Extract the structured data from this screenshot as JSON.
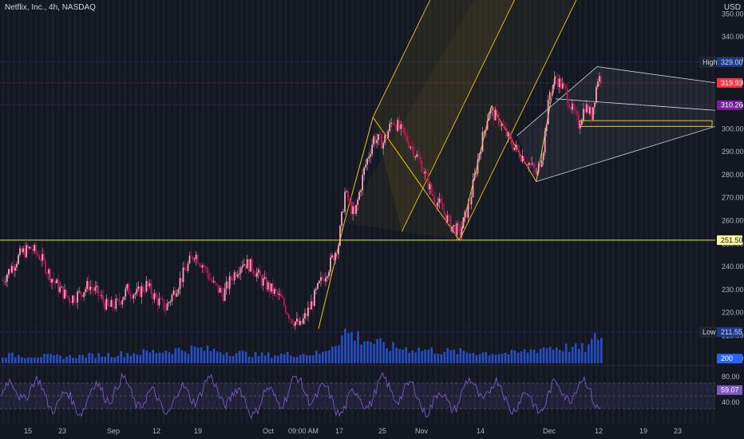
{
  "header": {
    "symbol_line": "Netflix, Inc., 4h, NASDAQ",
    "currency": "USD"
  },
  "chart_data": {
    "type": "candlestick",
    "price_axis": {
      "ticks": [
        350,
        340,
        330,
        320,
        310,
        300,
        290,
        280,
        270,
        260,
        250,
        240,
        230,
        220,
        210,
        200
      ],
      "range": [
        198,
        356
      ]
    },
    "time_axis": {
      "labels": [
        "15",
        "23",
        "Sep",
        "12",
        "19",
        "Oct",
        "09:00 AM",
        "17",
        "25",
        "Nov",
        "14",
        "Dec",
        "12",
        "19",
        "23"
      ]
    },
    "price_tags": {
      "high": {
        "label": "High",
        "value": "329.00"
      },
      "last": {
        "value": "319.93"
      },
      "mid": {
        "value": "310.26"
      },
      "level": {
        "value": "251.50"
      },
      "low": {
        "label": "Low",
        "value": "211.55"
      },
      "vol": {
        "value": "200"
      }
    },
    "horizontal_line": 251.5,
    "price_path": [
      {
        "i": 0,
        "p": 234
      },
      {
        "i": 6,
        "p": 240
      },
      {
        "i": 12,
        "p": 246
      },
      {
        "i": 18,
        "p": 248
      },
      {
        "i": 24,
        "p": 244
      },
      {
        "i": 30,
        "p": 236
      },
      {
        "i": 36,
        "p": 230
      },
      {
        "i": 42,
        "p": 226
      },
      {
        "i": 48,
        "p": 228
      },
      {
        "i": 54,
        "p": 232
      },
      {
        "i": 60,
        "p": 228
      },
      {
        "i": 66,
        "p": 222
      },
      {
        "i": 72,
        "p": 224
      },
      {
        "i": 78,
        "p": 230
      },
      {
        "i": 84,
        "p": 228
      },
      {
        "i": 90,
        "p": 232
      },
      {
        "i": 96,
        "p": 226
      },
      {
        "i": 102,
        "p": 222
      },
      {
        "i": 108,
        "p": 230
      },
      {
        "i": 114,
        "p": 238
      },
      {
        "i": 120,
        "p": 246
      },
      {
        "i": 126,
        "p": 240
      },
      {
        "i": 132,
        "p": 232
      },
      {
        "i": 138,
        "p": 228
      },
      {
        "i": 144,
        "p": 236
      },
      {
        "i": 150,
        "p": 242
      },
      {
        "i": 156,
        "p": 240
      },
      {
        "i": 162,
        "p": 234
      },
      {
        "i": 168,
        "p": 230
      },
      {
        "i": 174,
        "p": 226
      },
      {
        "i": 180,
        "p": 218
      },
      {
        "i": 186,
        "p": 214
      },
      {
        "i": 192,
        "p": 222
      },
      {
        "i": 198,
        "p": 232
      },
      {
        "i": 204,
        "p": 240
      },
      {
        "i": 210,
        "p": 250
      },
      {
        "i": 214,
        "p": 272
      },
      {
        "i": 220,
        "p": 262
      },
      {
        "i": 226,
        "p": 282
      },
      {
        "i": 232,
        "p": 296
      },
      {
        "i": 238,
        "p": 294
      },
      {
        "i": 244,
        "p": 304
      },
      {
        "i": 250,
        "p": 298
      },
      {
        "i": 256,
        "p": 292
      },
      {
        "i": 262,
        "p": 284
      },
      {
        "i": 268,
        "p": 272
      },
      {
        "i": 274,
        "p": 266
      },
      {
        "i": 280,
        "p": 258
      },
      {
        "i": 286,
        "p": 255
      },
      {
        "i": 292,
        "p": 268
      },
      {
        "i": 298,
        "p": 290
      },
      {
        "i": 304,
        "p": 308
      },
      {
        "i": 310,
        "p": 304
      },
      {
        "i": 316,
        "p": 296
      },
      {
        "i": 322,
        "p": 290
      },
      {
        "i": 328,
        "p": 286
      },
      {
        "i": 334,
        "p": 280
      },
      {
        "i": 338,
        "p": 292
      },
      {
        "i": 342,
        "p": 316
      },
      {
        "i": 346,
        "p": 322
      },
      {
        "i": 352,
        "p": 316
      },
      {
        "i": 356,
        "p": 308
      },
      {
        "i": 360,
        "p": 302
      },
      {
        "i": 364,
        "p": 310
      },
      {
        "i": 368,
        "p": 306
      },
      {
        "i": 372,
        "p": 322
      }
    ],
    "volume_path": [
      {
        "i": 0,
        "v": 0.25
      },
      {
        "i": 40,
        "v": 0.2
      },
      {
        "i": 80,
        "v": 0.3
      },
      {
        "i": 120,
        "v": 0.45
      },
      {
        "i": 160,
        "v": 0.25
      },
      {
        "i": 200,
        "v": 0.3
      },
      {
        "i": 214,
        "v": 0.95
      },
      {
        "i": 240,
        "v": 0.5
      },
      {
        "i": 280,
        "v": 0.35
      },
      {
        "i": 320,
        "v": 0.3
      },
      {
        "i": 340,
        "v": 0.5
      },
      {
        "i": 365,
        "v": 0.45
      },
      {
        "i": 372,
        "v": 0.85
      }
    ],
    "oscillator": {
      "ticks": [
        80,
        60,
        40
      ],
      "last_value": "59.07",
      "range": [
        10,
        95
      ],
      "band": [
        30,
        70
      ]
    }
  }
}
